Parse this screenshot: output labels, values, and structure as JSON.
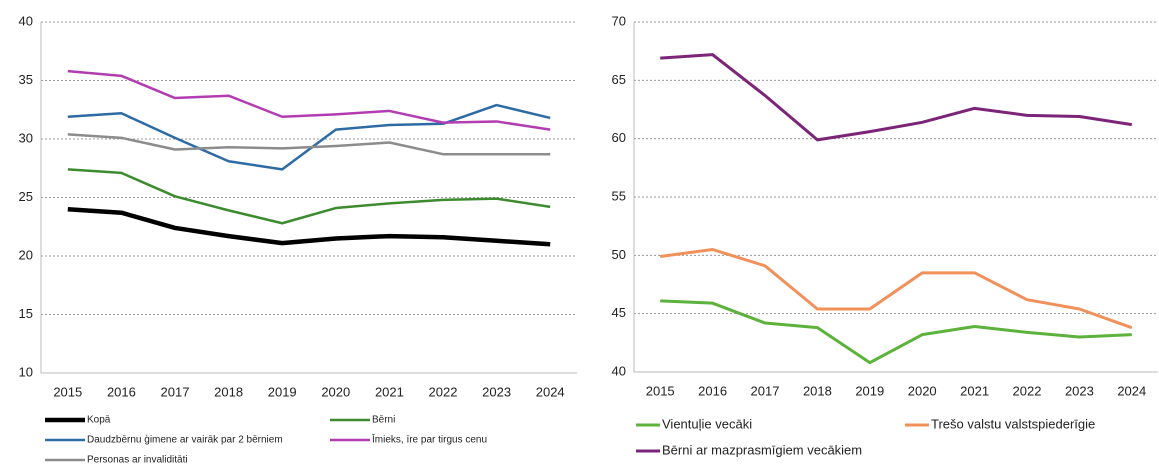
{
  "chart_data": [
    {
      "type": "line",
      "categories": [
        "2015",
        "2016",
        "2017",
        "2018",
        "2019",
        "2020",
        "2021",
        "2022",
        "2023",
        "2024"
      ],
      "ylim": [
        10,
        40
      ],
      "yticks": [
        10,
        15,
        20,
        25,
        30,
        35,
        40
      ],
      "grid": true,
      "series": [
        {
          "name": "Kopā",
          "color": "#000000",
          "values": [
            24.0,
            23.7,
            22.4,
            21.7,
            21.1,
            21.5,
            21.7,
            21.6,
            21.3,
            21.0
          ]
        },
        {
          "name": "Bērni",
          "color": "#3d8b2f",
          "values": [
            27.4,
            27.1,
            25.1,
            23.9,
            22.8,
            24.1,
            24.5,
            24.8,
            24.9,
            24.2
          ]
        },
        {
          "name": "Daudzbērnu ģimene ar vairāk par 2 bērniem",
          "color": "#2e6ba4",
          "values": [
            31.9,
            32.2,
            30.1,
            28.1,
            27.4,
            30.8,
            31.2,
            31.3,
            32.9,
            31.8
          ]
        },
        {
          "name": "Īmieks, īre par tirgus cenu",
          "color": "#b23cb2",
          "values": [
            35.8,
            35.4,
            33.5,
            33.7,
            31.9,
            32.1,
            32.4,
            31.4,
            31.5,
            30.8
          ]
        },
        {
          "name": "Personas ar invaliditāti",
          "color": "#8c8c8c",
          "values": [
            30.4,
            30.1,
            29.1,
            29.3,
            29.2,
            29.4,
            29.7,
            28.7,
            28.7,
            28.7
          ]
        }
      ]
    },
    {
      "type": "line",
      "categories": [
        "2015",
        "2016",
        "2017",
        "2018",
        "2019",
        "2020",
        "2021",
        "2022",
        "2023",
        "2024"
      ],
      "ylim": [
        40,
        70
      ],
      "yticks": [
        40,
        45,
        50,
        55,
        60,
        65,
        70
      ],
      "grid": true,
      "series": [
        {
          "name": "Vientuļie vecāki",
          "color": "#5cb23a",
          "values": [
            46.1,
            45.9,
            44.2,
            43.8,
            40.8,
            43.2,
            43.9,
            43.4,
            43.0,
            43.2
          ]
        },
        {
          "name": "Trešo valstu valstspiederīgie",
          "color": "#f0915a",
          "values": [
            49.9,
            50.5,
            49.1,
            45.4,
            45.4,
            48.5,
            48.5,
            46.2,
            45.4,
            43.8
          ]
        },
        {
          "name": "Bērni ar mazprasmīgiem vecākiem",
          "color": "#7b2478",
          "values": [
            66.9,
            67.2,
            63.7,
            59.9,
            60.6,
            61.4,
            62.6,
            62.0,
            61.9,
            61.2
          ]
        }
      ]
    }
  ]
}
